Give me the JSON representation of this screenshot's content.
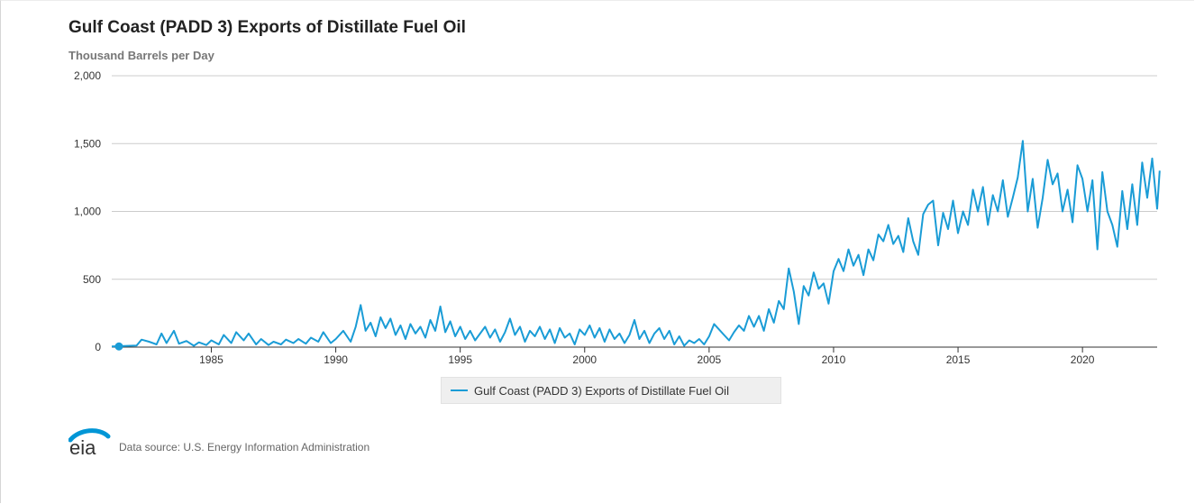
{
  "colors": {
    "series": "#1a9cd6",
    "grid": "#cccccc",
    "axis": "#333333",
    "logo": "#0096d6"
  },
  "header": {
    "title": "Gulf Coast (PADD 3) Exports of Distillate Fuel Oil",
    "subtitle": "Thousand Barrels per Day"
  },
  "legend": {
    "label": "Gulf Coast (PADD 3) Exports of Distillate Fuel Oil"
  },
  "footer": {
    "logo_text": "eia",
    "source": "Data source: U.S. Energy Information Administration"
  },
  "chart_data": {
    "type": "line",
    "title": "Gulf Coast (PADD 3) Exports of Distillate Fuel Oil",
    "ylabel": "Thousand Barrels per Day",
    "xlim": [
      1981.0,
      2023.0
    ],
    "ylim": [
      0,
      2000
    ],
    "grid": true,
    "legend_position": "bottom",
    "y_ticks": [
      "0",
      "500",
      "1,000",
      "1,500",
      "2,000"
    ],
    "x_ticks": [
      "1985",
      "1990",
      "1995",
      "2000",
      "2005",
      "2010",
      "2015",
      "2020"
    ],
    "series": [
      {
        "name": "Gulf Coast (PADD 3) Exports of Distillate Fuel Oil",
        "points": [
          [
            1981.0,
            5
          ],
          [
            1981.5,
            8
          ],
          [
            1982.0,
            12
          ],
          [
            1982.2,
            55
          ],
          [
            1982.5,
            40
          ],
          [
            1982.8,
            20
          ],
          [
            1983.0,
            100
          ],
          [
            1983.2,
            30
          ],
          [
            1983.5,
            120
          ],
          [
            1983.7,
            25
          ],
          [
            1984.0,
            45
          ],
          [
            1984.3,
            10
          ],
          [
            1984.5,
            35
          ],
          [
            1984.8,
            15
          ],
          [
            1985.0,
            50
          ],
          [
            1985.3,
            20
          ],
          [
            1985.5,
            90
          ],
          [
            1985.8,
            30
          ],
          [
            1986.0,
            110
          ],
          [
            1986.3,
            50
          ],
          [
            1986.5,
            100
          ],
          [
            1986.8,
            20
          ],
          [
            1987.0,
            60
          ],
          [
            1987.3,
            15
          ],
          [
            1987.5,
            40
          ],
          [
            1987.8,
            20
          ],
          [
            1988.0,
            55
          ],
          [
            1988.3,
            30
          ],
          [
            1988.5,
            60
          ],
          [
            1988.8,
            25
          ],
          [
            1989.0,
            70
          ],
          [
            1989.3,
            40
          ],
          [
            1989.5,
            110
          ],
          [
            1989.8,
            30
          ],
          [
            1990.0,
            60
          ],
          [
            1990.3,
            120
          ],
          [
            1990.6,
            40
          ],
          [
            1990.8,
            150
          ],
          [
            1991.0,
            310
          ],
          [
            1991.2,
            120
          ],
          [
            1991.4,
            180
          ],
          [
            1991.6,
            80
          ],
          [
            1991.8,
            220
          ],
          [
            1992.0,
            140
          ],
          [
            1992.2,
            210
          ],
          [
            1992.4,
            90
          ],
          [
            1992.6,
            160
          ],
          [
            1992.8,
            60
          ],
          [
            1993.0,
            170
          ],
          [
            1993.2,
            100
          ],
          [
            1993.4,
            150
          ],
          [
            1993.6,
            70
          ],
          [
            1993.8,
            200
          ],
          [
            1994.0,
            120
          ],
          [
            1994.2,
            300
          ],
          [
            1994.4,
            110
          ],
          [
            1994.6,
            190
          ],
          [
            1994.8,
            80
          ],
          [
            1995.0,
            150
          ],
          [
            1995.2,
            60
          ],
          [
            1995.4,
            120
          ],
          [
            1995.6,
            50
          ],
          [
            1995.8,
            100
          ],
          [
            1996.0,
            150
          ],
          [
            1996.2,
            70
          ],
          [
            1996.4,
            130
          ],
          [
            1996.6,
            40
          ],
          [
            1996.8,
            110
          ],
          [
            1997.0,
            210
          ],
          [
            1997.2,
            90
          ],
          [
            1997.4,
            150
          ],
          [
            1997.6,
            40
          ],
          [
            1997.8,
            120
          ],
          [
            1998.0,
            80
          ],
          [
            1998.2,
            150
          ],
          [
            1998.4,
            60
          ],
          [
            1998.6,
            130
          ],
          [
            1998.8,
            30
          ],
          [
            1999.0,
            140
          ],
          [
            1999.2,
            70
          ],
          [
            1999.4,
            100
          ],
          [
            1999.6,
            20
          ],
          [
            1999.8,
            130
          ],
          [
            2000.0,
            90
          ],
          [
            2000.2,
            160
          ],
          [
            2000.4,
            70
          ],
          [
            2000.6,
            140
          ],
          [
            2000.8,
            40
          ],
          [
            2001.0,
            130
          ],
          [
            2001.2,
            60
          ],
          [
            2001.4,
            100
          ],
          [
            2001.6,
            30
          ],
          [
            2001.8,
            90
          ],
          [
            2002.0,
            200
          ],
          [
            2002.2,
            60
          ],
          [
            2002.4,
            120
          ],
          [
            2002.6,
            30
          ],
          [
            2002.8,
            100
          ],
          [
            2003.0,
            140
          ],
          [
            2003.2,
            60
          ],
          [
            2003.4,
            120
          ],
          [
            2003.6,
            20
          ],
          [
            2003.8,
            80
          ],
          [
            2004.0,
            10
          ],
          [
            2004.2,
            50
          ],
          [
            2004.4,
            30
          ],
          [
            2004.6,
            60
          ],
          [
            2004.8,
            20
          ],
          [
            2005.0,
            80
          ],
          [
            2005.2,
            170
          ],
          [
            2005.4,
            130
          ],
          [
            2005.6,
            90
          ],
          [
            2005.8,
            50
          ],
          [
            2006.0,
            110
          ],
          [
            2006.2,
            160
          ],
          [
            2006.4,
            120
          ],
          [
            2006.6,
            230
          ],
          [
            2006.8,
            150
          ],
          [
            2007.0,
            230
          ],
          [
            2007.2,
            120
          ],
          [
            2007.4,
            280
          ],
          [
            2007.6,
            180
          ],
          [
            2007.8,
            340
          ],
          [
            2008.0,
            280
          ],
          [
            2008.2,
            580
          ],
          [
            2008.4,
            410
          ],
          [
            2008.6,
            170
          ],
          [
            2008.8,
            450
          ],
          [
            2009.0,
            380
          ],
          [
            2009.2,
            550
          ],
          [
            2009.4,
            430
          ],
          [
            2009.6,
            470
          ],
          [
            2009.8,
            320
          ],
          [
            2010.0,
            560
          ],
          [
            2010.2,
            650
          ],
          [
            2010.4,
            560
          ],
          [
            2010.6,
            720
          ],
          [
            2010.8,
            600
          ],
          [
            2011.0,
            680
          ],
          [
            2011.2,
            530
          ],
          [
            2011.4,
            720
          ],
          [
            2011.6,
            640
          ],
          [
            2011.8,
            830
          ],
          [
            2012.0,
            780
          ],
          [
            2012.2,
            900
          ],
          [
            2012.4,
            760
          ],
          [
            2012.6,
            820
          ],
          [
            2012.8,
            700
          ],
          [
            2013.0,
            950
          ],
          [
            2013.2,
            780
          ],
          [
            2013.4,
            680
          ],
          [
            2013.6,
            980
          ],
          [
            2013.8,
            1050
          ],
          [
            2014.0,
            1080
          ],
          [
            2014.2,
            750
          ],
          [
            2014.4,
            990
          ],
          [
            2014.6,
            870
          ],
          [
            2014.8,
            1080
          ],
          [
            2015.0,
            840
          ],
          [
            2015.2,
            1000
          ],
          [
            2015.4,
            900
          ],
          [
            2015.6,
            1160
          ],
          [
            2015.8,
            1000
          ],
          [
            2016.0,
            1180
          ],
          [
            2016.2,
            900
          ],
          [
            2016.4,
            1120
          ],
          [
            2016.6,
            1000
          ],
          [
            2016.8,
            1230
          ],
          [
            2017.0,
            960
          ],
          [
            2017.2,
            1100
          ],
          [
            2017.4,
            1250
          ],
          [
            2017.6,
            1520
          ],
          [
            2017.8,
            1000
          ],
          [
            2018.0,
            1240
          ],
          [
            2018.2,
            880
          ],
          [
            2018.4,
            1100
          ],
          [
            2018.6,
            1380
          ],
          [
            2018.8,
            1200
          ],
          [
            2019.0,
            1280
          ],
          [
            2019.2,
            1000
          ],
          [
            2019.4,
            1160
          ],
          [
            2019.6,
            920
          ],
          [
            2019.8,
            1340
          ],
          [
            2020.0,
            1240
          ],
          [
            2020.2,
            1000
          ],
          [
            2020.4,
            1230
          ],
          [
            2020.6,
            720
          ],
          [
            2020.8,
            1290
          ],
          [
            2021.0,
            1000
          ],
          [
            2021.2,
            900
          ],
          [
            2021.4,
            740
          ],
          [
            2021.6,
            1150
          ],
          [
            2021.8,
            870
          ],
          [
            2022.0,
            1200
          ],
          [
            2022.2,
            900
          ],
          [
            2022.4,
            1360
          ],
          [
            2022.6,
            1100
          ],
          [
            2022.8,
            1390
          ],
          [
            2023.0,
            1020
          ],
          [
            2023.1,
            1300
          ]
        ]
      }
    ]
  }
}
